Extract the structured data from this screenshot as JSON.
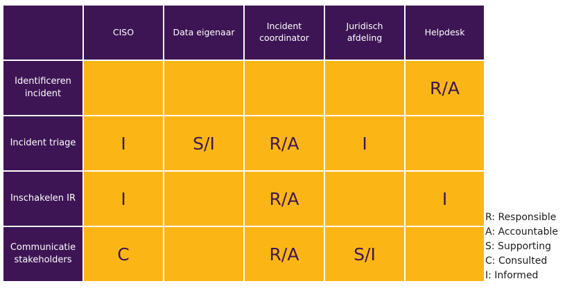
{
  "table": {
    "columns": [
      "CISO",
      "Data eigenaar",
      "Incident coordinator",
      "Juridisch afdeling",
      "Helpdesk"
    ],
    "rows": [
      {
        "label": "Identificeren incident",
        "cells": [
          null,
          null,
          null,
          null,
          "R/A"
        ]
      },
      {
        "label": "Incident triage",
        "cells": [
          "I",
          "S/I",
          "R/A",
          "I",
          null
        ]
      },
      {
        "label": "Inschakelen IR",
        "cells": [
          "I",
          null,
          "R/A",
          null,
          "I"
        ]
      },
      {
        "label": "Communicatie stakeholders",
        "cells": [
          "C",
          null,
          "R/A",
          "S/I",
          null
        ]
      }
    ]
  },
  "legend": [
    "R: Responsible",
    "A: Accountable",
    "S: Supporting",
    "C: Consulted",
    "I: Informed"
  ]
}
